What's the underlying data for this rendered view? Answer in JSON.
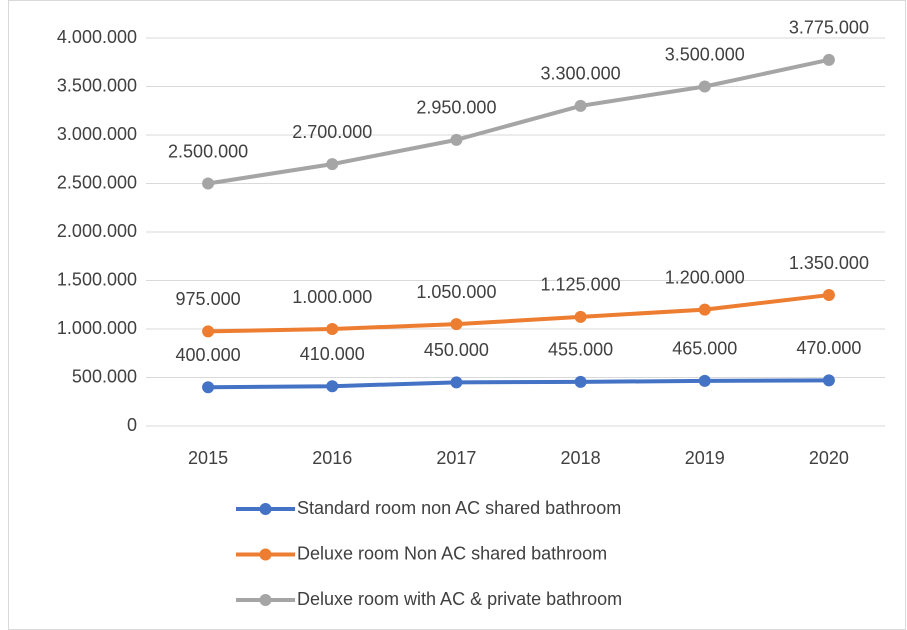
{
  "chart_data": {
    "type": "line",
    "categories": [
      "2015",
      "2016",
      "2017",
      "2018",
      "2019",
      "2020"
    ],
    "series": [
      {
        "name": "Standard room non AC shared bathroom",
        "color": "#4472c4",
        "values": [
          400000,
          410000,
          450000,
          455000,
          465000,
          470000
        ],
        "value_labels": [
          "400.000",
          "410.000",
          "450.000",
          "455.000",
          "465.000",
          "470.000"
        ]
      },
      {
        "name": "Deluxe room Non AC shared bathroom",
        "color": "#ed7d31",
        "values": [
          975000,
          1000000,
          1050000,
          1125000,
          1200000,
          1350000
        ],
        "value_labels": [
          "975.000",
          "1.000.000",
          "1.050.000",
          "1.125.000",
          "1.200.000",
          "1.350.000"
        ]
      },
      {
        "name": "Deluxe room with AC & private bathroom",
        "color": "#a5a5a5",
        "values": [
          2500000,
          2700000,
          2950000,
          3300000,
          3500000,
          3775000
        ],
        "value_labels": [
          "2.500.000",
          "2.700.000",
          "2.950.000",
          "3.300.000",
          "3.500.000",
          "3.775.000"
        ]
      }
    ],
    "ylim": [
      0,
      4000000
    ],
    "yticks": [
      0,
      {
        "value": 500000,
        "label": "500.000"
      },
      {
        "value": 1000000,
        "label": "1.000.000"
      },
      {
        "value": 1500000,
        "label": "1.500.000"
      },
      {
        "value": 2000000,
        "label": "2.000.000"
      },
      {
        "value": 2500000,
        "label": "2.500.000"
      },
      {
        "value": 3000000,
        "label": "3.000.000"
      },
      {
        "value": 3500000,
        "label": "3.500.000"
      },
      {
        "value": 4000000,
        "label": "4.000.000"
      }
    ],
    "grid": true,
    "legend": "bottom"
  }
}
